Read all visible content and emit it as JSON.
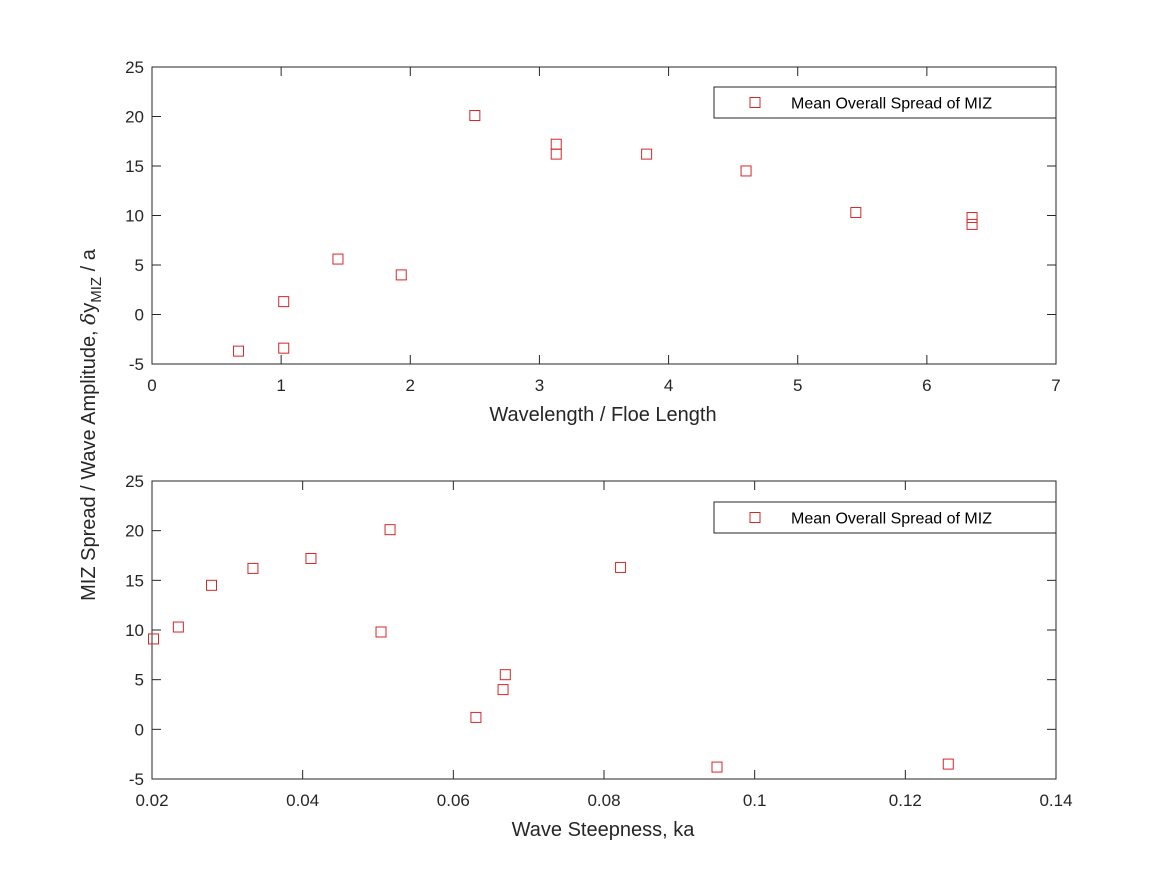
{
  "colors": {
    "marker": "#d62728",
    "axis": "#262626",
    "background": "#ffffff"
  },
  "shared_ylabel": {
    "pre": "MIZ Spread / Wave Amplitude, ",
    "delta": "δ",
    "y": "y",
    "sub": "MIZ",
    "post": " / a"
  },
  "chart_data": [
    {
      "type": "scatter",
      "xlabel": "Wavelength / Floe Length",
      "xlim": [
        0,
        7
      ],
      "ylim": [
        -5,
        25
      ],
      "xticks": [
        0,
        1,
        2,
        3,
        4,
        5,
        6,
        7
      ],
      "yticks": [
        -5,
        0,
        5,
        10,
        15,
        20,
        25
      ],
      "legend_position": "top-right",
      "series": [
        {
          "name": "Mean Overall Spread of MIZ",
          "marker": "square",
          "x": [
            0.67,
            1.02,
            1.02,
            1.44,
            1.93,
            2.5,
            3.13,
            3.13,
            3.83,
            4.6,
            5.45,
            6.35,
            6.35
          ],
          "y": [
            -3.7,
            1.3,
            -3.4,
            5.6,
            4.0,
            20.1,
            17.2,
            16.2,
            16.2,
            14.5,
            10.3,
            9.8,
            9.1
          ]
        }
      ]
    },
    {
      "type": "scatter",
      "xlabel": "Wave Steepness, ka",
      "xlim": [
        0.02,
        0.14
      ],
      "ylim": [
        -5,
        25
      ],
      "xticks": [
        0.02,
        0.04,
        0.06,
        0.08,
        0.1,
        0.12,
        0.14
      ],
      "xtick_labels": [
        "0.02",
        "0.04",
        "0.06",
        "0.08",
        "0.1",
        "0.12",
        "0.14"
      ],
      "yticks": [
        -5,
        0,
        5,
        10,
        15,
        20,
        25
      ],
      "legend_position": "top-right",
      "series": [
        {
          "name": "Mean Overall Spread of MIZ",
          "marker": "square",
          "x": [
            0.0202,
            0.0235,
            0.0279,
            0.0334,
            0.0411,
            0.0504,
            0.0516,
            0.063,
            0.0666,
            0.0669,
            0.0822,
            0.095,
            0.1257
          ],
          "y": [
            9.1,
            10.3,
            14.5,
            16.2,
            17.2,
            9.8,
            20.1,
            1.2,
            4.0,
            5.5,
            16.3,
            -3.8,
            -3.5
          ]
        }
      ]
    }
  ]
}
